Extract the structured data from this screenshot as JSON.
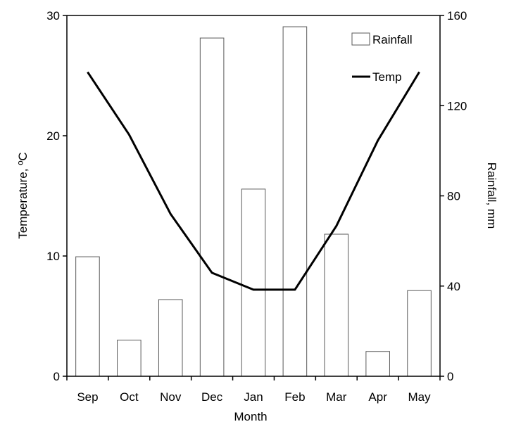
{
  "chart_data": {
    "type": "bar+line",
    "categories": [
      "Sep",
      "Oct",
      "Nov",
      "Dec",
      "Jan",
      "Feb",
      "Mar",
      "Apr",
      "May"
    ],
    "xlabel": "Month",
    "y_left": {
      "label": "Temperature, ºC",
      "ylim": [
        0,
        30
      ],
      "ticks": [
        0,
        10,
        20,
        30
      ]
    },
    "y_right": {
      "label": "Rainfall, mm",
      "ylim": [
        0,
        160
      ],
      "ticks": [
        0,
        40,
        80,
        120,
        160
      ]
    },
    "series": [
      {
        "name": "Rainfall",
        "type": "bar",
        "axis": "right",
        "values": [
          53,
          16,
          34,
          150,
          83,
          155,
          63,
          11,
          38
        ]
      },
      {
        "name": "Temp",
        "type": "line",
        "axis": "left",
        "values": [
          25.3,
          20.1,
          13.5,
          8.6,
          7.2,
          7.2,
          12.5,
          19.6,
          25.3
        ]
      }
    ],
    "legend": {
      "position": "top-right"
    },
    "grid": false,
    "colors": {
      "bar_fill": "#ffffff",
      "bar_stroke": "#595959",
      "line": "#000000"
    }
  }
}
